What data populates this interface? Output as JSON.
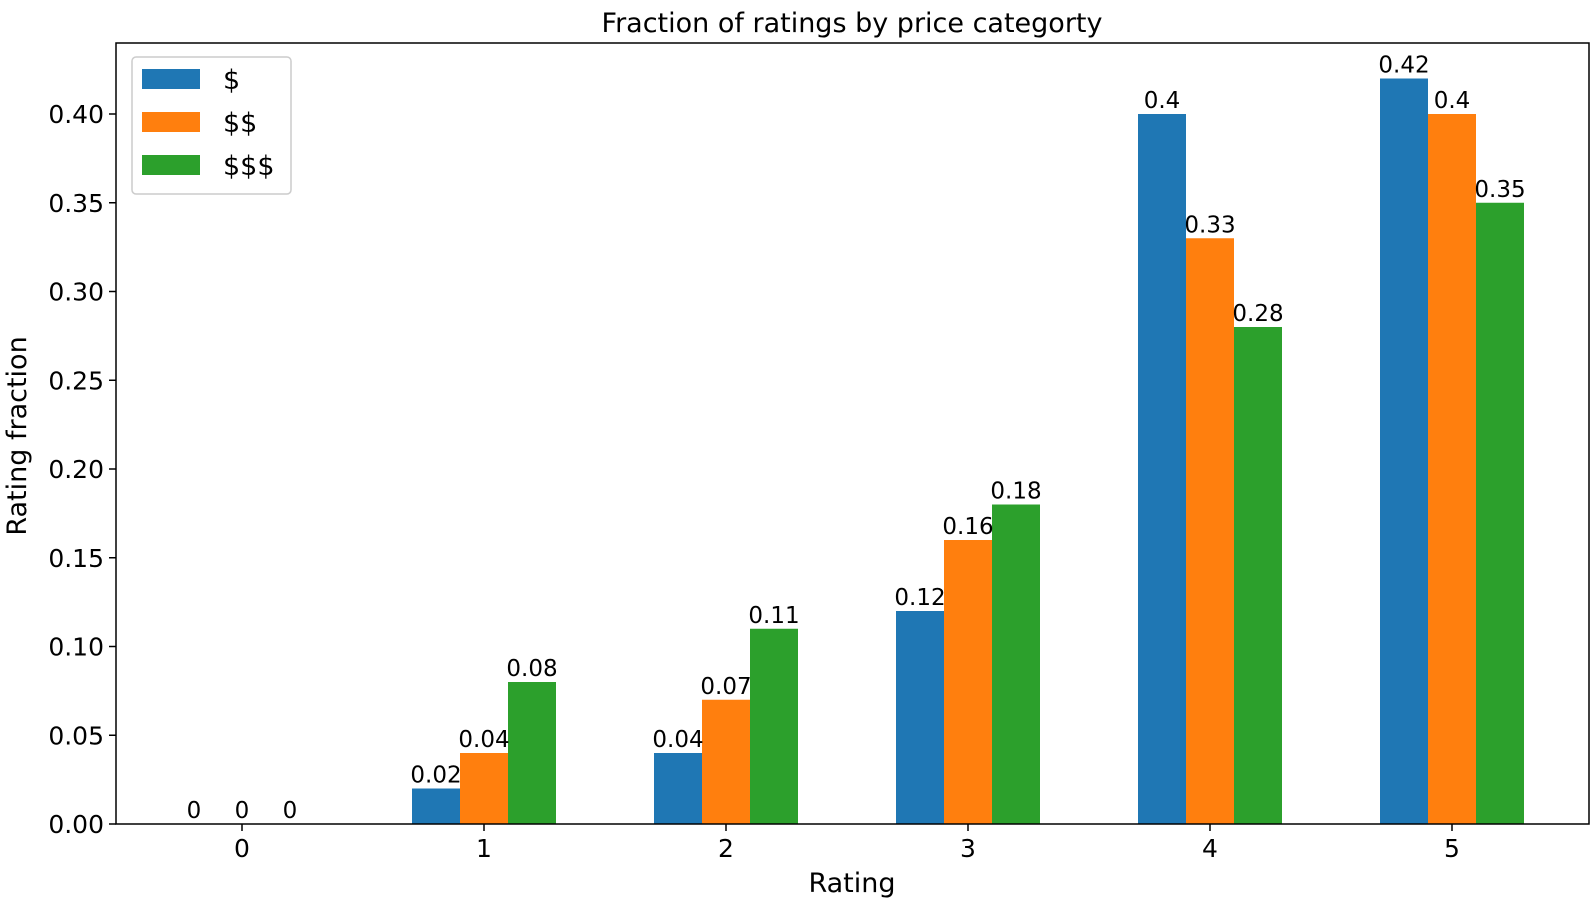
{
  "chart_data": {
    "type": "bar",
    "title": "Fraction of ratings by price categorty",
    "xlabel": "Rating",
    "ylabel": "Rating fraction",
    "categories": [
      "0",
      "1",
      "2",
      "3",
      "4",
      "5"
    ],
    "series": [
      {
        "name": "$",
        "color": "#1f77b4",
        "values": [
          0,
          0.02,
          0.04,
          0.12,
          0.4,
          0.42
        ],
        "labels": [
          "0",
          "0.02",
          "0.04",
          "0.12",
          "0.4",
          "0.42"
        ]
      },
      {
        "name": "$$",
        "color": "#ff7f0e",
        "values": [
          0,
          0.04,
          0.07,
          0.16,
          0.33,
          0.4
        ],
        "labels": [
          "0",
          "0.04",
          "0.07",
          "0.16",
          "0.33",
          "0.4"
        ]
      },
      {
        "name": "$$$",
        "color": "#2ca02c",
        "values": [
          0,
          0.08,
          0.11,
          0.18,
          0.28,
          0.35
        ],
        "labels": [
          "0",
          "0.08",
          "0.11",
          "0.18",
          "0.28",
          "0.35"
        ]
      }
    ],
    "ylim": [
      0,
      0.44
    ],
    "yticks": [
      "0.00",
      "0.05",
      "0.10",
      "0.15",
      "0.20",
      "0.25",
      "0.30",
      "0.35",
      "0.40"
    ],
    "grid": false,
    "legend_position": "top-left"
  }
}
